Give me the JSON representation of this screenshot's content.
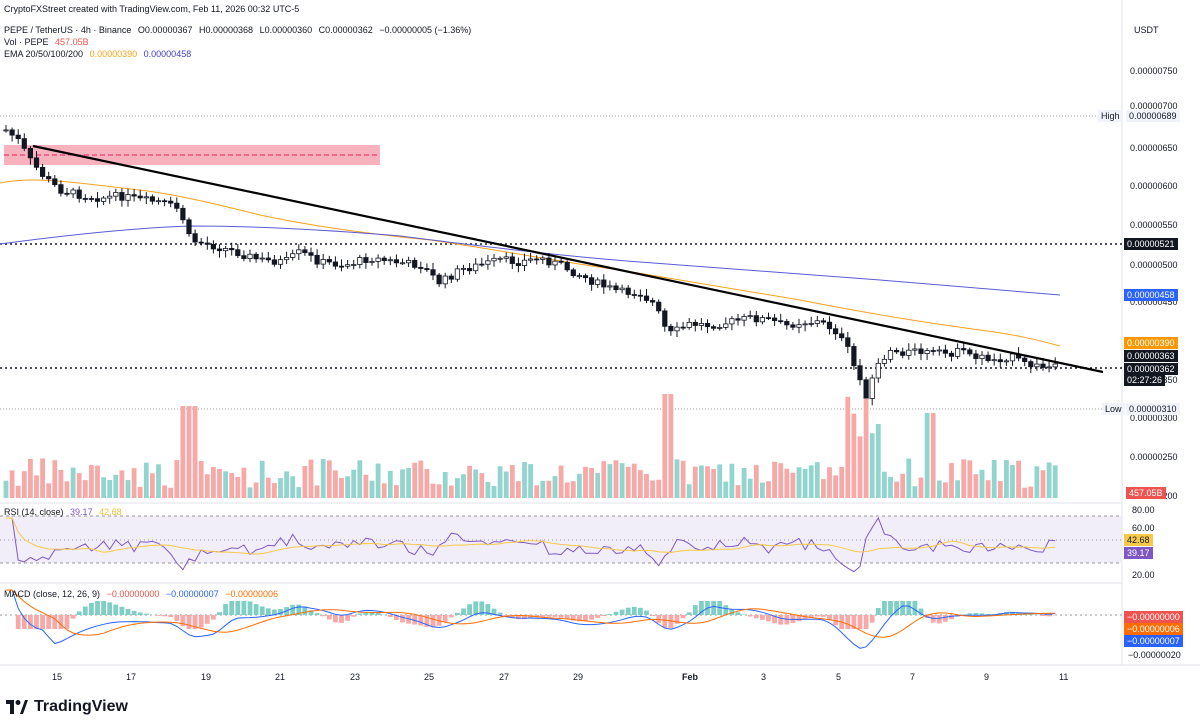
{
  "attribution": "CryptoFXStreet created with TradingView.com, Feb 11, 2026 00:32 UTC-5",
  "header": {
    "symbol": "PEPE / TetherUS · 4h · Binance",
    "open": "O0.00000367",
    "high": "H0.00000368",
    "low": "L0.00000360",
    "close": "C0.00000362",
    "change": "−0.00000005 (−1.36%)",
    "vol_label": "Vol · PEPE",
    "vol_value": "457.05B",
    "ema_label": "EMA 20/50/100/200",
    "ema_value1": "0.00000390",
    "ema_value2": "0.00000458"
  },
  "price_axis": {
    "currency": "USDT",
    "ticks": [
      "0.00000750",
      "0.00000700",
      "0.00000650",
      "0.00000600",
      "0.00000550",
      "0.00000500",
      "0.00000450",
      "0.00000400",
      "0.00000350",
      "0.00000300",
      "0.00000250",
      "0.00000200"
    ]
  },
  "tags": {
    "high_label": "High",
    "high_value": "0.00000689",
    "low_label": "Low",
    "low_value": "0.00000310",
    "level_521": "0.00000521",
    "ema200_value": "0.00000458",
    "ema50_value": "0.00000390",
    "level_363": "0.00000363",
    "last_price": "0.00000362",
    "countdown": "02:27:26",
    "volume_value": "457.05B"
  },
  "rsi": {
    "label": "RSI (14, close)",
    "value1": "39.17",
    "value2": "42.68",
    "ticks": [
      "80.00",
      "60.00",
      "20.00"
    ],
    "tag_value": "42.68",
    "tag_rsi": "39.17"
  },
  "macd": {
    "label": "MACD (close, 12, 26, 9)",
    "v1": "−0.00000000",
    "v2": "−0.00000007",
    "v3": "−0.00000006",
    "tag1": "−0.00000000",
    "tag2": "−0.00000006",
    "tag3": "−0.00000007",
    "tick": "−0.00000020"
  },
  "time_axis": [
    "15",
    "17",
    "19",
    "21",
    "23",
    "25",
    "27",
    "29",
    "Feb",
    "3",
    "5",
    "7",
    "9",
    "11"
  ],
  "footer_brand": "TradingView",
  "colors": {
    "up": "#26a69a",
    "down": "#ef5350",
    "ema50": "#f7a21b",
    "ema200": "#5b5bd6",
    "rsi_line": "#7e57c2",
    "macd_line": "#2962ff",
    "signal_line": "#ff6d00"
  },
  "chart_data": {
    "type": "candlestick",
    "symbol": "PEPE / TetherUS",
    "timeframe": "4h",
    "date_range": [
      "Jan 13",
      "Feb 11"
    ],
    "price_levels": {
      "high": 6.89e-06,
      "low": 3.1e-06,
      "horizontal": 5.21e-06,
      "current": 3.62e-06
    },
    "ema_50": 3.9e-06,
    "ema_200": 4.58e-06,
    "close_path_approx": [
      {
        "x": "Jan 14",
        "y": 6.6e-06
      },
      {
        "x": "Jan 15",
        "y": 6e-06
      },
      {
        "x": "Jan 17",
        "y": 5.9e-06
      },
      {
        "x": "Jan 18",
        "y": 5.75e-06
      },
      {
        "x": "Jan 19",
        "y": 5.3e-06
      },
      {
        "x": "Jan 21",
        "y": 5.05e-06
      },
      {
        "x": "Jan 23",
        "y": 5.05e-06
      },
      {
        "x": "Jan 25",
        "y": 4.6e-06
      },
      {
        "x": "Jan 27",
        "y": 5.1e-06
      },
      {
        "x": "Jan 29",
        "y": 4.8e-06
      },
      {
        "x": "Feb 1",
        "y": 4.2e-06
      },
      {
        "x": "Feb 3",
        "y": 4.2e-06
      },
      {
        "x": "Feb 5",
        "y": 4e-06
      },
      {
        "x": "Feb 6",
        "y": 3.3e-06
      },
      {
        "x": "Feb 7",
        "y": 3.9e-06
      },
      {
        "x": "Feb 9",
        "y": 3.75e-06
      },
      {
        "x": "Feb 11",
        "y": 3.62e-06
      }
    ]
  }
}
